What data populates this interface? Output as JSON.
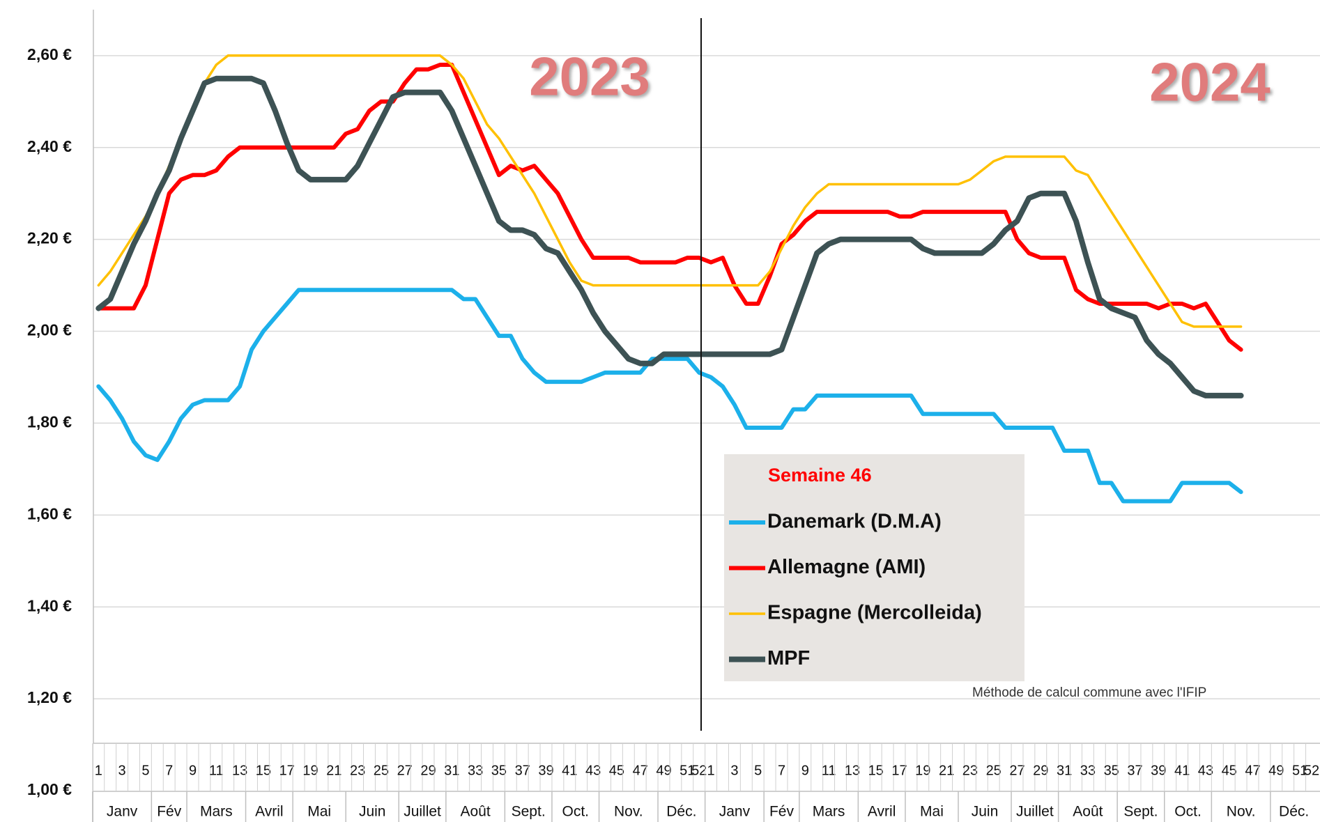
{
  "chart_data": {
    "type": "line",
    "categories": [
      "1",
      null,
      "3",
      null,
      "5",
      null,
      "7",
      null,
      "9",
      null,
      "11",
      null,
      "13",
      null,
      "15",
      null,
      "17",
      null,
      "19",
      null,
      "21",
      null,
      "23",
      null,
      "25",
      null,
      "27",
      null,
      "29",
      null,
      "31",
      null,
      "33",
      null,
      "35",
      null,
      "37",
      null,
      "39",
      null,
      "41",
      null,
      "43",
      null,
      "45",
      null,
      "47",
      null,
      "49",
      null,
      "51",
      "52",
      "1",
      null,
      "3",
      null,
      "5",
      null,
      "7",
      null,
      "9",
      null,
      "11",
      null,
      "13",
      null,
      "15",
      null,
      "17",
      null,
      "19",
      null,
      "21",
      null,
      "23",
      null,
      "25",
      null,
      "27",
      null,
      "29",
      null,
      "31",
      null,
      "33",
      null,
      "35",
      null,
      "37",
      null,
      "39",
      null,
      "41",
      null,
      "43",
      null,
      "45",
      null,
      "47",
      null,
      "49",
      null,
      "51",
      "52"
    ],
    "months": [
      "Janv",
      "Fév",
      "Mars",
      "Avril",
      "Mai",
      "Juin",
      "Juillet",
      "Août",
      "Sept.",
      "Oct.",
      "Nov.",
      "Déc.",
      "Janv",
      "Fév",
      "Mars",
      "Avril",
      "Mai",
      "Juin",
      "Juillet",
      "Août",
      "Sept.",
      "Oct.",
      "Nov.",
      "Déc."
    ],
    "legend_title": "Semaine 46",
    "annotations": [
      "2023",
      "2024"
    ],
    "note": "Méthode de calcul commune avec l'IFIP",
    "ylim": [
      1.0,
      2.7
    ],
    "yticks": [
      {
        "value": 1.0,
        "label": "1,00 €"
      },
      {
        "value": 1.2,
        "label": "1,20 €"
      },
      {
        "value": 1.4,
        "label": "1,40 €"
      },
      {
        "value": 1.6,
        "label": "1,60 €"
      },
      {
        "value": 1.8,
        "label": "1,80 €"
      },
      {
        "value": 2.0,
        "label": "2,00 €"
      },
      {
        "value": 2.2,
        "label": "2,20 €"
      },
      {
        "value": 2.4,
        "label": "2,40 €"
      },
      {
        "value": 2.6,
        "label": "2,60 €"
      }
    ],
    "grid": true,
    "series": [
      {
        "name": "Danemark (D.M.A)",
        "color": "#1cb0ea",
        "values": [
          1.88,
          1.85,
          1.81,
          1.76,
          1.73,
          1.72,
          1.76,
          1.81,
          1.84,
          1.85,
          1.85,
          1.85,
          1.88,
          1.96,
          2.0,
          2.03,
          2.06,
          2.09,
          2.09,
          2.09,
          2.09,
          2.09,
          2.09,
          2.09,
          2.09,
          2.09,
          2.09,
          2.09,
          2.09,
          2.09,
          2.09,
          2.07,
          2.07,
          2.03,
          1.99,
          1.99,
          1.94,
          1.91,
          1.89,
          1.89,
          1.89,
          1.89,
          1.9,
          1.91,
          1.91,
          1.91,
          1.91,
          1.94,
          1.94,
          1.94,
          1.94,
          1.91,
          1.9,
          1.88,
          1.84,
          1.79,
          1.79,
          1.79,
          1.79,
          1.83,
          1.83,
          1.86,
          1.86,
          1.86,
          1.86,
          1.86,
          1.86,
          1.86,
          1.86,
          1.86,
          1.82,
          1.82,
          1.82,
          1.82,
          1.82,
          1.82,
          1.82,
          1.79,
          1.79,
          1.79,
          1.79,
          1.79,
          1.74,
          1.74,
          1.74,
          1.67,
          1.67,
          1.63,
          1.63,
          1.63,
          1.63,
          1.63,
          1.67,
          1.67,
          1.67,
          1.67,
          1.67,
          1.65,
          null,
          null,
          null,
          null,
          null,
          null
        ]
      },
      {
        "name": "Allemagne (AMI)",
        "color": "#ff0000",
        "values": [
          2.05,
          2.05,
          2.05,
          2.05,
          2.1,
          2.2,
          2.3,
          2.33,
          2.34,
          2.34,
          2.35,
          2.38,
          2.4,
          2.4,
          2.4,
          2.4,
          2.4,
          2.4,
          2.4,
          2.4,
          2.4,
          2.43,
          2.44,
          2.48,
          2.5,
          2.5,
          2.54,
          2.57,
          2.57,
          2.58,
          2.58,
          2.52,
          2.46,
          2.4,
          2.34,
          2.36,
          2.35,
          2.36,
          2.33,
          2.3,
          2.25,
          2.2,
          2.16,
          2.16,
          2.16,
          2.16,
          2.15,
          2.15,
          2.15,
          2.15,
          2.16,
          2.16,
          2.15,
          2.16,
          2.1,
          2.06,
          2.06,
          2.12,
          2.19,
          2.21,
          2.24,
          2.26,
          2.26,
          2.26,
          2.26,
          2.26,
          2.26,
          2.26,
          2.25,
          2.25,
          2.26,
          2.26,
          2.26,
          2.26,
          2.26,
          2.26,
          2.26,
          2.26,
          2.2,
          2.17,
          2.16,
          2.16,
          2.16,
          2.09,
          2.07,
          2.06,
          2.06,
          2.06,
          2.06,
          2.06,
          2.05,
          2.06,
          2.06,
          2.05,
          2.06,
          2.02,
          1.98,
          1.96,
          null,
          null,
          null,
          null,
          null,
          null
        ]
      },
      {
        "name": "Espagne (Mercolleida)",
        "color": "#ffc000",
        "values": [
          2.1,
          2.13,
          2.17,
          2.21,
          2.25,
          2.3,
          2.36,
          2.42,
          2.48,
          2.54,
          2.58,
          2.6,
          2.6,
          2.6,
          2.6,
          2.6,
          2.6,
          2.6,
          2.6,
          2.6,
          2.6,
          2.6,
          2.6,
          2.6,
          2.6,
          2.6,
          2.6,
          2.6,
          2.6,
          2.6,
          2.58,
          2.55,
          2.5,
          2.45,
          2.42,
          2.38,
          2.34,
          2.3,
          2.25,
          2.2,
          2.15,
          2.11,
          2.1,
          2.1,
          2.1,
          2.1,
          2.1,
          2.1,
          2.1,
          2.1,
          2.1,
          2.1,
          2.1,
          2.1,
          2.1,
          2.1,
          2.1,
          2.13,
          2.18,
          2.23,
          2.27,
          2.3,
          2.32,
          2.32,
          2.32,
          2.32,
          2.32,
          2.32,
          2.32,
          2.32,
          2.32,
          2.32,
          2.32,
          2.32,
          2.33,
          2.35,
          2.37,
          2.38,
          2.38,
          2.38,
          2.38,
          2.38,
          2.38,
          2.35,
          2.34,
          2.3,
          2.26,
          2.22,
          2.18,
          2.14,
          2.1,
          2.06,
          2.02,
          2.01,
          2.01,
          2.01,
          2.01,
          2.01,
          null,
          null,
          null,
          null,
          null,
          null
        ]
      },
      {
        "name": "MPF",
        "color": "#3d5254",
        "values": [
          2.05,
          2.07,
          2.13,
          2.19,
          2.24,
          2.3,
          2.35,
          2.42,
          2.48,
          2.54,
          2.55,
          2.55,
          2.55,
          2.55,
          2.54,
          2.48,
          2.41,
          2.35,
          2.33,
          2.33,
          2.33,
          2.33,
          2.36,
          2.41,
          2.46,
          2.51,
          2.52,
          2.52,
          2.52,
          2.52,
          2.48,
          2.42,
          2.36,
          2.3,
          2.24,
          2.22,
          2.22,
          2.21,
          2.18,
          2.17,
          2.13,
          2.09,
          2.04,
          2.0,
          1.97,
          1.94,
          1.93,
          1.93,
          1.95,
          1.95,
          1.95,
          1.95,
          1.95,
          1.95,
          1.95,
          1.95,
          1.95,
          1.95,
          1.96,
          2.03,
          2.1,
          2.17,
          2.19,
          2.2,
          2.2,
          2.2,
          2.2,
          2.2,
          2.2,
          2.2,
          2.18,
          2.17,
          2.17,
          2.17,
          2.17,
          2.17,
          2.19,
          2.22,
          2.24,
          2.29,
          2.3,
          2.3,
          2.3,
          2.24,
          2.15,
          2.07,
          2.05,
          2.04,
          2.03,
          1.98,
          1.95,
          1.93,
          1.9,
          1.87,
          1.86,
          1.86,
          1.86,
          1.86,
          null,
          null,
          null,
          null,
          null,
          null
        ]
      }
    ]
  }
}
